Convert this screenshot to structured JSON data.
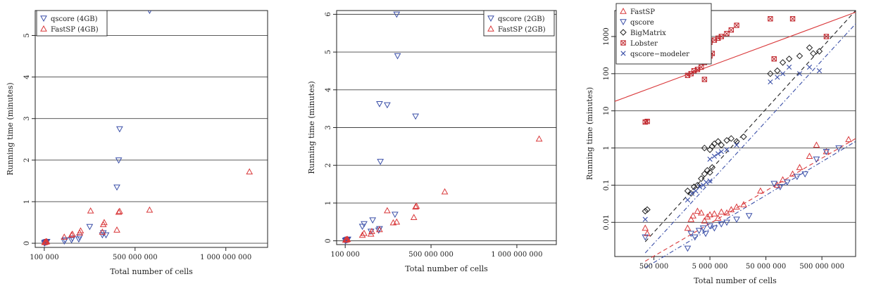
{
  "chart_data": [
    {
      "type": "scatter",
      "xlabel": "Total number of cells",
      "ylabel": "Running time (minutes)",
      "x_scale": "linear",
      "xlim": [
        -50000000,
        1230000000
      ],
      "ylim": [
        -0.1,
        5.6
      ],
      "x_ticks": [
        {
          "value": 0,
          "label": "100 000"
        },
        {
          "value": 500000000,
          "label": "500 000 000"
        },
        {
          "value": 1000000000,
          "label": "1 000 000 000"
        }
      ],
      "y_ticks": [
        0,
        1,
        2,
        3,
        4,
        5
      ],
      "grid": "horizontal",
      "legend_position": "top-left",
      "series": [
        {
          "name": "qscore (4GB)",
          "marker": "triangle-down",
          "color": "#3a4fa8",
          "points": [
            [
              1000000,
              0.0
            ],
            [
              3000000,
              0.02
            ],
            [
              6000000,
              0.02
            ],
            [
              9000000,
              0.03
            ],
            [
              12000000,
              0.03
            ],
            [
              15000000,
              0.04
            ],
            [
              110000000,
              0.05
            ],
            [
              115000000,
              0.08
            ],
            [
              150000000,
              0.08
            ],
            [
              155000000,
              0.12
            ],
            [
              190000000,
              0.1
            ],
            [
              195000000,
              0.15
            ],
            [
              250000000,
              0.4
            ],
            [
              320000000,
              0.2
            ],
            [
              325000000,
              0.25
            ],
            [
              340000000,
              0.2
            ],
            [
              400000000,
              1.35
            ],
            [
              410000000,
              2.0
            ],
            [
              415000000,
              2.75
            ],
            [
              580000000,
              5.6
            ]
          ]
        },
        {
          "name": "FastSP (4GB)",
          "marker": "triangle-up",
          "color": "#d9383a",
          "points": [
            [
              2000000,
              0.02
            ],
            [
              5000000,
              0.03
            ],
            [
              8000000,
              0.03
            ],
            [
              11000000,
              0.04
            ],
            [
              14000000,
              0.04
            ],
            [
              110000000,
              0.15
            ],
            [
              150000000,
              0.2
            ],
            [
              155000000,
              0.22
            ],
            [
              195000000,
              0.25
            ],
            [
              200000000,
              0.3
            ],
            [
              255000000,
              0.78
            ],
            [
              320000000,
              0.27
            ],
            [
              325000000,
              0.45
            ],
            [
              330000000,
              0.5
            ],
            [
              400000000,
              0.32
            ],
            [
              410000000,
              0.75
            ],
            [
              415000000,
              0.77
            ],
            [
              580000000,
              0.8
            ],
            [
              1130000000,
              1.72
            ]
          ]
        }
      ]
    },
    {
      "type": "scatter",
      "xlabel": "Total number of cells",
      "ylabel": "Running time (minutes)",
      "x_scale": "linear",
      "xlim": [
        -50000000,
        1230000000
      ],
      "ylim": [
        -0.1,
        6.1
      ],
      "x_ticks": [
        {
          "value": 0,
          "label": "100 000"
        },
        {
          "value": 500000000,
          "label": "500 000 000"
        },
        {
          "value": 1000000000,
          "label": "1 000 000 000"
        }
      ],
      "y_ticks": [
        0,
        1,
        2,
        3,
        4,
        5,
        6
      ],
      "grid": "horizontal",
      "legend_position": "top-right",
      "series": [
        {
          "name": "qscore (2GB)",
          "marker": "triangle-down",
          "color": "#3a4fa8",
          "points": [
            [
              1000000,
              0.0
            ],
            [
              4000000,
              0.02
            ],
            [
              7000000,
              0.02
            ],
            [
              10000000,
              0.03
            ],
            [
              13000000,
              0.03
            ],
            [
              16000000,
              0.04
            ],
            [
              100000000,
              0.38
            ],
            [
              110000000,
              0.45
            ],
            [
              150000000,
              0.25
            ],
            [
              160000000,
              0.55
            ],
            [
              195000000,
              0.28
            ],
            [
              200000000,
              0.32
            ],
            [
              205000000,
              2.1
            ],
            [
              200000000,
              3.63
            ],
            [
              245000000,
              3.6
            ],
            [
              290000000,
              0.7
            ],
            [
              300000000,
              6.0
            ],
            [
              305000000,
              4.9
            ],
            [
              410000000,
              3.3
            ]
          ]
        },
        {
          "name": "FastSP (2GB)",
          "marker": "triangle-up",
          "color": "#d9383a",
          "points": [
            [
              2000000,
              0.02
            ],
            [
              5000000,
              0.03
            ],
            [
              8000000,
              0.03
            ],
            [
              11000000,
              0.04
            ],
            [
              14000000,
              0.04
            ],
            [
              100000000,
              0.15
            ],
            [
              110000000,
              0.2
            ],
            [
              150000000,
              0.18
            ],
            [
              155000000,
              0.25
            ],
            [
              200000000,
              0.3
            ],
            [
              245000000,
              0.8
            ],
            [
              280000000,
              0.48
            ],
            [
              300000000,
              0.5
            ],
            [
              400000000,
              0.62
            ],
            [
              410000000,
              0.9
            ],
            [
              415000000,
              0.92
            ],
            [
              580000000,
              1.3
            ],
            [
              1130000000,
              2.7
            ]
          ]
        }
      ]
    },
    {
      "type": "scatter",
      "xlabel": "Total number of cells",
      "ylabel": "Running time (minutes)",
      "x_scale": "log",
      "y_scale": "log",
      "xlim": [
        100000,
        2000000000
      ],
      "ylim": [
        0.0012,
        5000
      ],
      "x_ticks": [
        {
          "value": 500000,
          "label": "500 000"
        },
        {
          "value": 5000000,
          "label": "5 000 000"
        },
        {
          "value": 50000000,
          "label": "50 000 000"
        },
        {
          "value": 500000000,
          "label": "500 000 000"
        }
      ],
      "y_ticks": [
        {
          "value": 0.01,
          "label": "0.01"
        },
        {
          "value": 0.1,
          "label": "0.1"
        },
        {
          "value": 1,
          "label": "1"
        },
        {
          "value": 10,
          "label": "10"
        },
        {
          "value": 100,
          "label": "100"
        },
        {
          "value": 1000,
          "label": "1000"
        }
      ],
      "grid": "horizontal",
      "legend_position": "top-left",
      "series": [
        {
          "name": "FastSP",
          "marker": "triangle-up",
          "color": "#d9383a",
          "points": [
            [
              350000,
              0.007
            ],
            [
              380000,
              0.005
            ],
            [
              2000000,
              0.007
            ],
            [
              2300000,
              0.012
            ],
            [
              2500000,
              0.015
            ],
            [
              3000000,
              0.02
            ],
            [
              3500000,
              0.018
            ],
            [
              4000000,
              0.011
            ],
            [
              4500000,
              0.014
            ],
            [
              5000000,
              0.016
            ],
            [
              6000000,
              0.017
            ],
            [
              7000000,
              0.013
            ],
            [
              8000000,
              0.019
            ],
            [
              10000000,
              0.018
            ],
            [
              12000000,
              0.022
            ],
            [
              15000000,
              0.026
            ],
            [
              20000000,
              0.03
            ],
            [
              40000000,
              0.07
            ],
            [
              80000000,
              0.1
            ],
            [
              100000000,
              0.14
            ],
            [
              150000000,
              0.2
            ],
            [
              200000000,
              0.3
            ],
            [
              300000000,
              0.6
            ],
            [
              400000000,
              1.2
            ],
            [
              600000000,
              0.8
            ],
            [
              1500000000,
              1.7
            ]
          ]
        },
        {
          "name": "qscore",
          "marker": "triangle-down",
          "color": "#3a4fa8",
          "points": [
            [
              350000,
              0.004
            ],
            [
              2000000,
              0.002
            ],
            [
              2300000,
              0.005
            ],
            [
              2700000,
              0.004
            ],
            [
              3200000,
              0.006
            ],
            [
              3800000,
              0.007
            ],
            [
              4200000,
              0.005
            ],
            [
              5000000,
              0.008
            ],
            [
              6000000,
              0.007
            ],
            [
              8000000,
              0.009
            ],
            [
              10000000,
              0.01
            ],
            [
              15000000,
              0.012
            ],
            [
              25000000,
              0.015
            ],
            [
              70000000,
              0.11
            ],
            [
              90000000,
              0.09
            ],
            [
              120000000,
              0.12
            ],
            [
              180000000,
              0.17
            ],
            [
              250000000,
              0.2
            ],
            [
              400000000,
              0.5
            ],
            [
              600000000,
              0.8
            ],
            [
              1000000000,
              1.0
            ]
          ]
        },
        {
          "name": "BigMatrix",
          "marker": "diamond",
          "color": "#222222",
          "points": [
            [
              350000,
              0.02
            ],
            [
              380000,
              0.022
            ],
            [
              2000000,
              0.07
            ],
            [
              2300000,
              0.06
            ],
            [
              2600000,
              0.09
            ],
            [
              3000000,
              0.1
            ],
            [
              3500000,
              0.15
            ],
            [
              4000000,
              0.2
            ],
            [
              4500000,
              0.25
            ],
            [
              5000000,
              0.22
            ],
            [
              5500000,
              0.3
            ],
            [
              4000000,
              1.0
            ],
            [
              5000000,
              0.9
            ],
            [
              5500000,
              1.1
            ],
            [
              6000000,
              1.3
            ],
            [
              7000000,
              1.5
            ],
            [
              8000000,
              1.2
            ],
            [
              10000000,
              1.6
            ],
            [
              12000000,
              1.8
            ],
            [
              15000000,
              1.5
            ],
            [
              20000000,
              2.0
            ],
            [
              60000000,
              100
            ],
            [
              80000000,
              120
            ],
            [
              100000000,
              200
            ],
            [
              130000000,
              250
            ],
            [
              200000000,
              300
            ],
            [
              300000000,
              500
            ],
            [
              350000000,
              350
            ],
            [
              450000000,
              400
            ]
          ]
        },
        {
          "name": "Lobster",
          "marker": "square-x",
          "color": "#c0272d",
          "points": [
            [
              350000,
              5
            ],
            [
              380000,
              5.2
            ],
            [
              2000000,
              90
            ],
            [
              2300000,
              100
            ],
            [
              2600000,
              120
            ],
            [
              3000000,
              130
            ],
            [
              3500000,
              150
            ],
            [
              4000000,
              200
            ],
            [
              4500000,
              250
            ],
            [
              5000000,
              300
            ],
            [
              5500000,
              350
            ],
            [
              5000000,
              700
            ],
            [
              6000000,
              800
            ],
            [
              7000000,
              900
            ],
            [
              8000000,
              1000
            ],
            [
              10000000,
              1200
            ],
            [
              12000000,
              1500
            ],
            [
              15000000,
              2000
            ],
            [
              4000000,
              70
            ],
            [
              60000000,
              3000
            ],
            [
              70000000,
              250
            ],
            [
              150000000,
              3000
            ],
            [
              600000000,
              1000
            ]
          ]
        },
        {
          "name": "qscore−modeler",
          "marker": "x",
          "color": "#3a4fa8",
          "points": [
            [
              350000,
              0.012
            ],
            [
              2000000,
              0.04
            ],
            [
              2400000,
              0.06
            ],
            [
              2800000,
              0.07
            ],
            [
              3300000,
              0.09
            ],
            [
              3800000,
              0.1
            ],
            [
              4300000,
              0.12
            ],
            [
              5000000,
              0.13
            ],
            [
              5000000,
              0.5
            ],
            [
              6000000,
              0.6
            ],
            [
              7000000,
              0.7
            ],
            [
              8000000,
              0.8
            ],
            [
              10000000,
              0.9
            ],
            [
              15000000,
              1.2
            ],
            [
              60000000,
              60
            ],
            [
              80000000,
              80
            ],
            [
              100000000,
              100
            ],
            [
              130000000,
              150
            ],
            [
              200000000,
              100
            ],
            [
              300000000,
              150
            ],
            [
              450000000,
              120
            ]
          ]
        }
      ],
      "trend_lines": [
        {
          "series": "FastSP",
          "style": "dashed",
          "color": "#d9383a",
          "from": [
            350000,
            0.0009
          ],
          "to": [
            2000000000,
            1.8
          ]
        },
        {
          "series": "qscore",
          "style": "dashdot",
          "color": "#3a4fa8",
          "from": [
            350000,
            0.0006
          ],
          "to": [
            2000000000,
            1.5
          ]
        },
        {
          "series": "BigMatrix",
          "style": "dashed",
          "color": "#222222",
          "from": [
            350000,
            0.003
          ],
          "to": [
            2000000000,
            5000
          ]
        },
        {
          "series": "Lobster",
          "style": "solid",
          "color": "#d9383a",
          "from": [
            100000,
            18
          ],
          "to": [
            2000000000,
            4500
          ]
        },
        {
          "series": "qscore−modeler",
          "style": "dashdot",
          "color": "#3a4fa8",
          "from": [
            350000,
            0.0015
          ],
          "to": [
            2000000000,
            2200
          ]
        }
      ]
    }
  ]
}
